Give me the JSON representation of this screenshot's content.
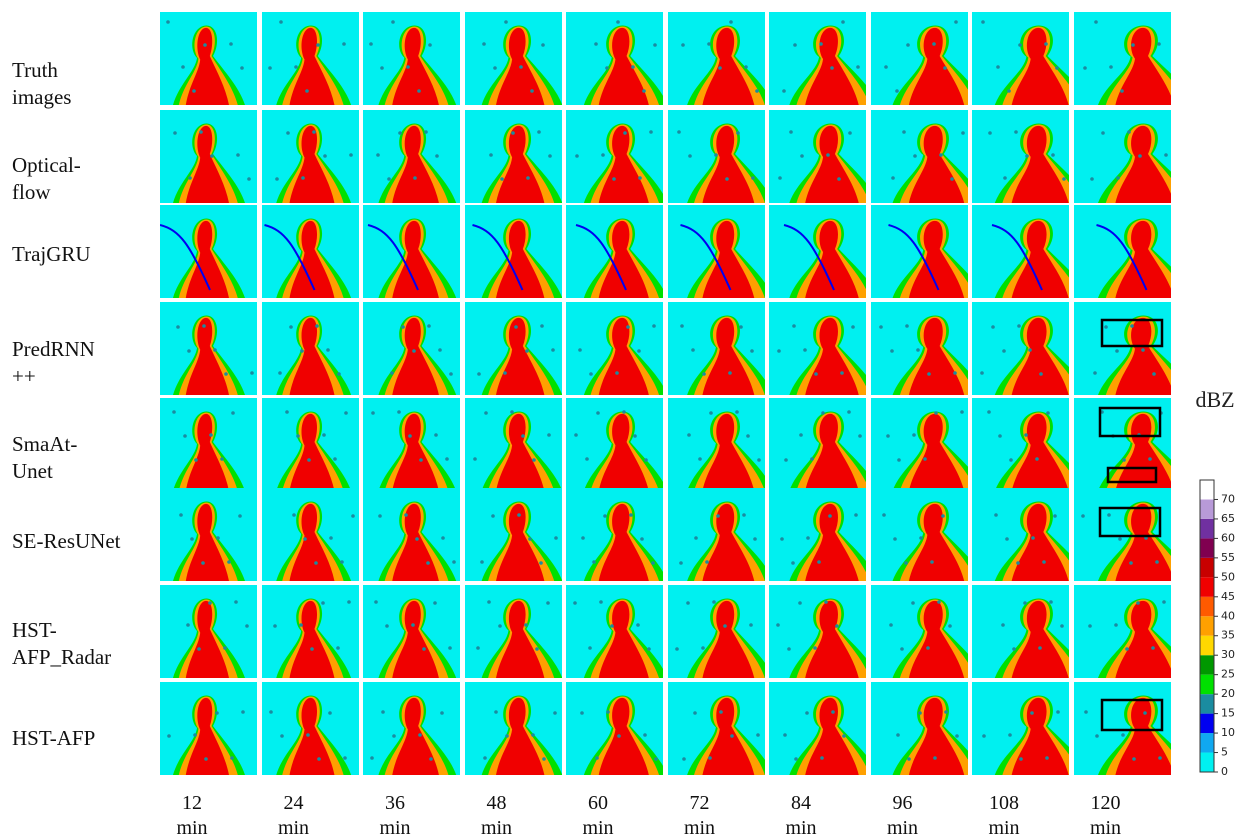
{
  "row_labels": [
    "Truth images",
    "Optical-flow",
    "TrajGRU",
    "PredRNN++",
    "SmaAt-Unet",
    "SE-ResUNet",
    "HST-AFP_Radar",
    "HST-AFP"
  ],
  "column_labels": [
    "12 min",
    "24 min",
    "36 min",
    "48 min",
    "60 min",
    "72 min",
    "84 min",
    "96 min",
    "108 min",
    "120 min"
  ],
  "colorbar": {
    "title": "dBZ",
    "lim": [
      0,
      75
    ],
    "ticks": [
      0,
      5,
      10,
      15,
      20,
      25,
      30,
      35,
      40,
      45,
      50,
      55,
      60,
      65,
      70
    ],
    "colors": [
      "#00f0f0",
      "#10a8f0",
      "#0000f0",
      "#1a8ca0",
      "#00e000",
      "#009800",
      "#ffd800",
      "#ffa000",
      "#ff5a00",
      "#f00000",
      "#c80000",
      "#800050",
      "#7030a0",
      "#b89ad8",
      "#ffffff"
    ]
  }
}
